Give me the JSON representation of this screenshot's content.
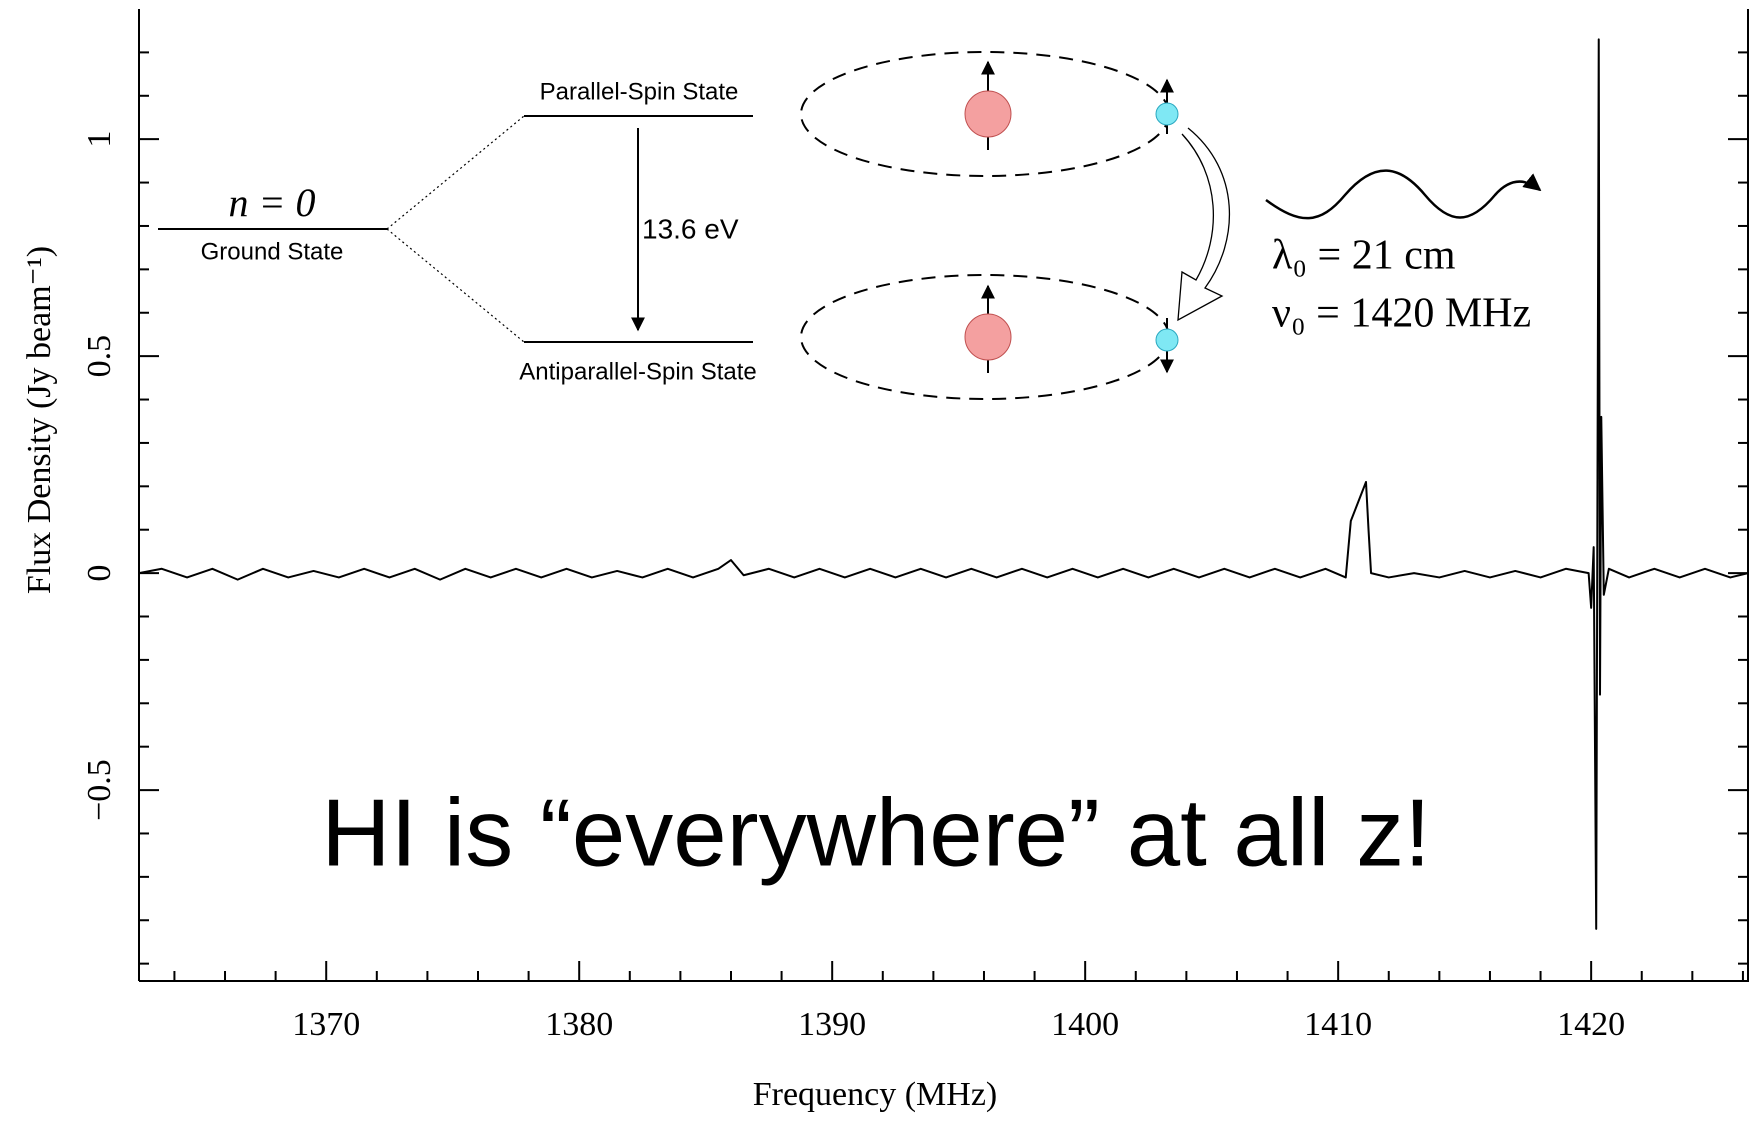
{
  "chart_data": {
    "type": "line",
    "x_label": "Frequency (MHz)",
    "y_label": "Flux Density (Jy beam⁻¹)",
    "xlim": [
      1362.6,
      1426.2
    ],
    "ylim": [
      -0.94,
      1.3
    ],
    "xticks": [
      1370,
      1380,
      1390,
      1400,
      1410,
      1420
    ],
    "yticks": [
      {
        "value": -0.5,
        "label": "−0.5"
      },
      0,
      0.5,
      1
    ],
    "xminorticks": [
      1364,
      1366,
      1368,
      1372,
      1374,
      1376,
      1378,
      1382,
      1384,
      1386,
      1388,
      1392,
      1394,
      1396,
      1398,
      1402,
      1404,
      1406,
      1408,
      1412,
      1414,
      1416,
      1418,
      1422,
      1424,
      1426
    ],
    "yminorticks": [
      -0.9,
      -0.8,
      -0.7,
      -0.6,
      -0.4,
      -0.3,
      -0.2,
      -0.1,
      0.1,
      0.2,
      0.3,
      0.4,
      0.6,
      0.7,
      0.8,
      0.9,
      1.1,
      1.2
    ],
    "color": "#000000",
    "x": [
      1362.6,
      1363.5,
      1364.5,
      1365.5,
      1366.5,
      1367.5,
      1368.5,
      1369.5,
      1370.5,
      1371.5,
      1372.5,
      1373.5,
      1374.5,
      1375.5,
      1376.5,
      1377.5,
      1378.5,
      1379.5,
      1380.5,
      1381.5,
      1382.5,
      1383.5,
      1384.5,
      1385.5,
      1386.0,
      1386.5,
      1387.5,
      1388.5,
      1389.5,
      1390.5,
      1391.5,
      1392.5,
      1393.5,
      1394.5,
      1395.5,
      1396.5,
      1397.5,
      1398.5,
      1399.5,
      1400.5,
      1401.5,
      1402.5,
      1403.5,
      1404.5,
      1405.5,
      1406.5,
      1407.5,
      1408.5,
      1409.5,
      1410.3,
      1410.5,
      1410.7,
      1410.9,
      1411.1,
      1411.2,
      1411.3,
      1412.0,
      1413.0,
      1414.0,
      1415.0,
      1416.0,
      1417.0,
      1418.0,
      1419.0,
      1419.9,
      1420.0,
      1420.1,
      1420.2,
      1420.3,
      1420.35,
      1420.4,
      1420.5,
      1420.7,
      1421.5,
      1422.5,
      1423.5,
      1424.5,
      1425.5,
      1426.2
    ],
    "values": [
      0.0,
      0.01,
      -0.01,
      0.01,
      -0.015,
      0.01,
      -0.01,
      0.005,
      -0.01,
      0.01,
      -0.01,
      0.01,
      -0.015,
      0.01,
      -0.01,
      0.01,
      -0.01,
      0.01,
      -0.01,
      0.005,
      -0.01,
      0.01,
      -0.01,
      0.01,
      0.03,
      -0.005,
      0.01,
      -0.01,
      0.01,
      -0.01,
      0.01,
      -0.01,
      0.01,
      -0.01,
      0.01,
      -0.01,
      0.01,
      -0.01,
      0.01,
      -0.01,
      0.01,
      -0.01,
      0.01,
      -0.01,
      0.01,
      -0.01,
      0.01,
      -0.01,
      0.01,
      -0.01,
      0.12,
      0.15,
      0.18,
      0.21,
      0.1,
      0.0,
      -0.01,
      0.0,
      -0.01,
      0.005,
      -0.01,
      0.005,
      -0.01,
      0.01,
      0.0,
      -0.08,
      0.06,
      -0.82,
      1.23,
      -0.28,
      0.36,
      -0.05,
      0.01,
      -0.01,
      0.01,
      -0.01,
      0.01,
      -0.01,
      0.0
    ],
    "annotations": {
      "ground_level": "n = 0",
      "ground_state": "Ground State",
      "parallel_state": "Parallel-Spin State",
      "antiparallel_state": "Antiparallel-Spin State",
      "energy": "13.6 eV",
      "wavelength": "λ₀ = 21 cm",
      "frequency": "ν₀ = 1420 MHz",
      "headline": "HI is “everywhere” at all z!"
    }
  }
}
